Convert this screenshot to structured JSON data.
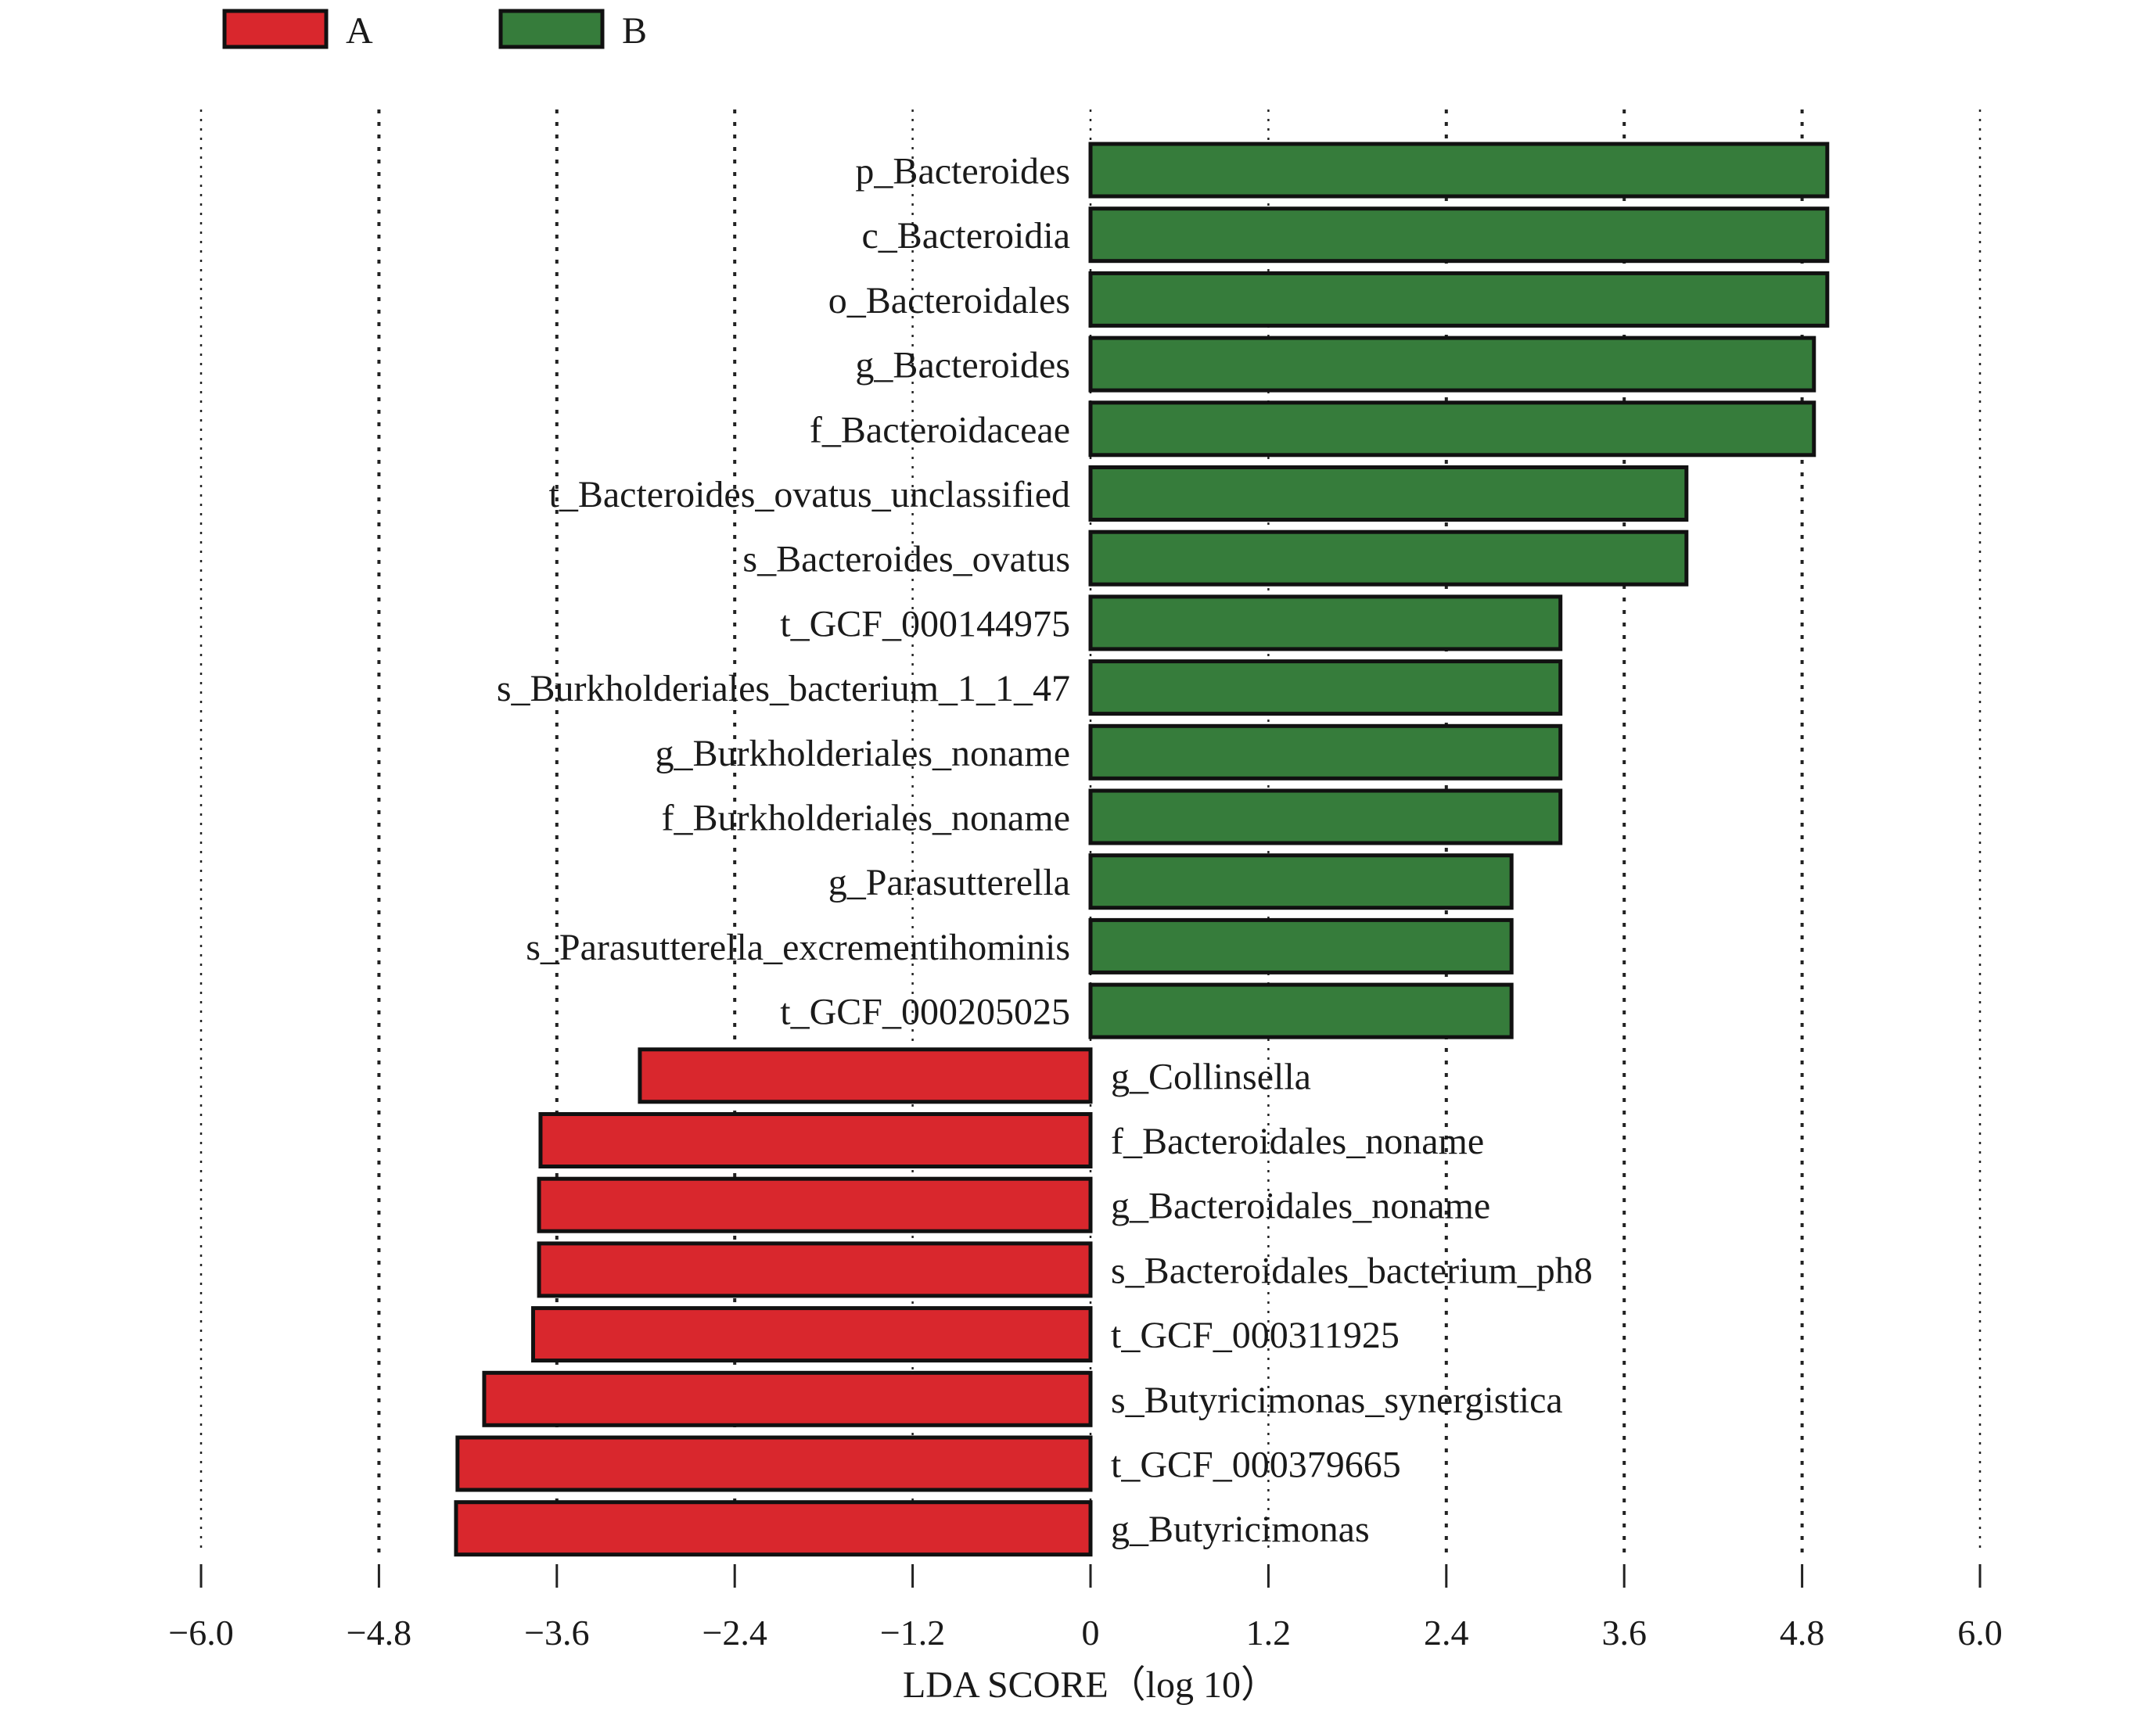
{
  "chart_data": {
    "type": "bar",
    "orientation": "horizontal",
    "xlabel": "LDA SCORE（log 10）",
    "xlim": [
      -6.0,
      6.0
    ],
    "xticks": [
      "−6.0",
      "−4.8",
      "−3.6",
      "−2.4",
      "−1.2",
      "0",
      "1.2",
      "2.4",
      "3.6",
      "4.8",
      "6.0"
    ],
    "xtick_values": [
      -6.0,
      -4.8,
      -3.6,
      -2.4,
      -1.2,
      0,
      1.2,
      2.4,
      3.6,
      4.8,
      6.0
    ],
    "grid": "vertical dotted",
    "legend_position": "top-left",
    "groups": [
      {
        "name": "A",
        "color": "#d9272d"
      },
      {
        "name": "B",
        "color": "#367c3b"
      }
    ],
    "bars": [
      {
        "label": "p_Bacteroides",
        "value": 4.97,
        "group": "B"
      },
      {
        "label": "c_Bacteroidia",
        "value": 4.97,
        "group": "B"
      },
      {
        "label": "o_Bacteroidales",
        "value": 4.97,
        "group": "B"
      },
      {
        "label": "g_Bacteroides",
        "value": 4.88,
        "group": "B"
      },
      {
        "label": "f_Bacteroidaceae",
        "value": 4.88,
        "group": "B"
      },
      {
        "label": "t_Bacteroides_ovatus_unclassified",
        "value": 4.02,
        "group": "B"
      },
      {
        "label": "s_Bacteroides_ovatus",
        "value": 4.02,
        "group": "B"
      },
      {
        "label": "t_GCF_000144975",
        "value": 3.17,
        "group": "B"
      },
      {
        "label": "s_Burkholderiales_bacterium_1_1_47",
        "value": 3.17,
        "group": "B"
      },
      {
        "label": "g_Burkholderiales_noname",
        "value": 3.17,
        "group": "B"
      },
      {
        "label": "f_Burkholderiales_noname",
        "value": 3.17,
        "group": "B"
      },
      {
        "label": "g_Parasutterella",
        "value": 2.84,
        "group": "B"
      },
      {
        "label": "s_Parasutterella_excrementihominis",
        "value": 2.84,
        "group": "B"
      },
      {
        "label": "t_GCF_000205025",
        "value": 2.84,
        "group": "B"
      },
      {
        "label": "g_Collinsella",
        "value": -3.04,
        "group": "A"
      },
      {
        "label": "f_Bacteroidales_noname",
        "value": -3.71,
        "group": "A"
      },
      {
        "label": "g_Bacteroidales_noname",
        "value": -3.72,
        "group": "A"
      },
      {
        "label": "s_Bacteroidales_bacterium_ph8",
        "value": -3.72,
        "group": "A"
      },
      {
        "label": "t_GCF_000311925",
        "value": -3.76,
        "group": "A"
      },
      {
        "label": "s_Butyricimonas_synergistica",
        "value": -4.09,
        "group": "A"
      },
      {
        "label": "t_GCF_000379665",
        "value": -4.27,
        "group": "A"
      },
      {
        "label": "g_Butyricimonas",
        "value": -4.28,
        "group": "A"
      }
    ]
  }
}
